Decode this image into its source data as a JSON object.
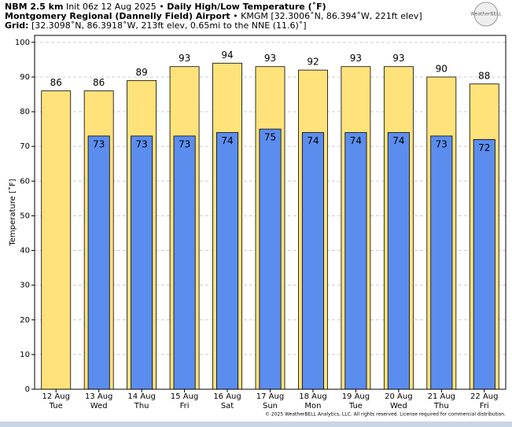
{
  "header": {
    "model": "NBM 2.5 km",
    "init": "Init 06z 12 Aug 2025 •",
    "product": "Daily High/Low Temperature (˚F)",
    "station": "Montgomery Regional (Dannelly Field) Airport",
    "station_info": "• KMGM [32.3006˚N, 86.394˚W, 221ft elev]",
    "grid_label": "Grid:",
    "grid_info": "[32.3098˚N, 86.3918˚W, 213ft elev, 0.65mi to the NNE (11.6)˚]",
    "logo": "WeatherBELL"
  },
  "chart_data": {
    "type": "bar",
    "y_label": "Temperature [˚F]",
    "categories": [
      [
        "12 Aug",
        "Tue"
      ],
      [
        "13 Aug",
        "Wed"
      ],
      [
        "14 Aug",
        "Thu"
      ],
      [
        "15 Aug",
        "Fri"
      ],
      [
        "16 Aug",
        "Sat"
      ],
      [
        "17 Aug",
        "Sun"
      ],
      [
        "18 Aug",
        "Mon"
      ],
      [
        "19 Aug",
        "Tue"
      ],
      [
        "20 Aug",
        "Wed"
      ],
      [
        "21 Aug",
        "Thu"
      ],
      [
        "22 Aug",
        "Fri"
      ]
    ],
    "series": [
      {
        "color": "#ffe27a",
        "values": [
          86,
          86,
          89,
          93,
          94,
          93,
          92,
          93,
          93,
          90,
          88
        ]
      },
      {
        "color": "#5b8def",
        "values": [
          null,
          73,
          73,
          73,
          74,
          75,
          74,
          74,
          74,
          73,
          72
        ]
      }
    ],
    "ylim": [
      0,
      102
    ],
    "yticks": [
      0,
      10,
      20,
      30,
      40,
      50,
      60,
      70,
      80,
      90,
      100
    ],
    "grid": true
  },
  "footer": "© 2025 WeatherBELL Analytics, LLC. All rights reserved. License required for commercial distribution."
}
